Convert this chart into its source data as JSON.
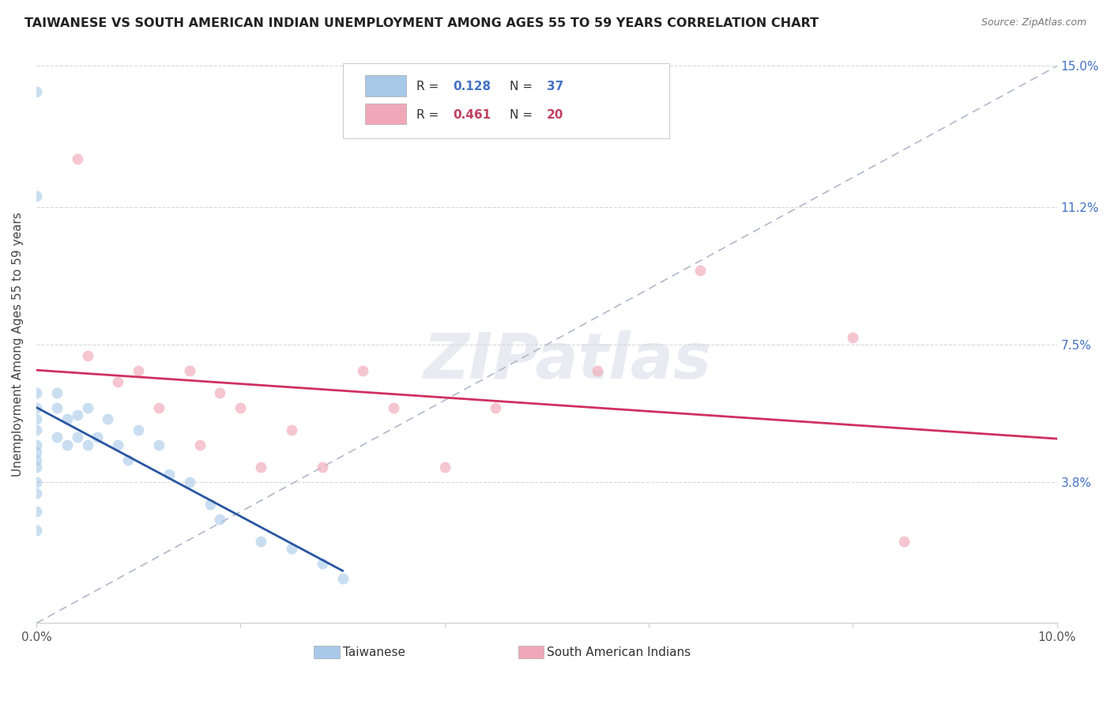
{
  "title": "TAIWANESE VS SOUTH AMERICAN INDIAN UNEMPLOYMENT AMONG AGES 55 TO 59 YEARS CORRELATION CHART",
  "source": "Source: ZipAtlas.com",
  "ylabel": "Unemployment Among Ages 55 to 59 years",
  "xlim": [
    0.0,
    0.1
  ],
  "ylim": [
    0.0,
    0.15
  ],
  "xtick_vals": [
    0.0,
    0.02,
    0.04,
    0.06,
    0.08,
    0.1
  ],
  "xticklabels": [
    "0.0%",
    "",
    "",
    "",
    "",
    "10.0%"
  ],
  "ytick_vals": [
    0.0,
    0.038,
    0.075,
    0.112,
    0.15
  ],
  "ytick_labels_right": [
    "",
    "3.8%",
    "7.5%",
    "11.2%",
    "15.0%"
  ],
  "grid_color": "#d8d8d8",
  "watermark": "ZIPatlas",
  "taiwanese_x": [
    0.0,
    0.0,
    0.0,
    0.0,
    0.0,
    0.0,
    0.0,
    0.0,
    0.0,
    0.0,
    0.0,
    0.0,
    0.0,
    0.0,
    0.002,
    0.002,
    0.002,
    0.003,
    0.003,
    0.004,
    0.004,
    0.005,
    0.005,
    0.006,
    0.007,
    0.008,
    0.009,
    0.01,
    0.012,
    0.013,
    0.015,
    0.017,
    0.018,
    0.022,
    0.025,
    0.028,
    0.03
  ],
  "taiwanese_y": [
    0.143,
    0.115,
    0.062,
    0.058,
    0.055,
    0.052,
    0.048,
    0.046,
    0.044,
    0.042,
    0.038,
    0.035,
    0.03,
    0.025,
    0.062,
    0.058,
    0.05,
    0.055,
    0.048,
    0.056,
    0.05,
    0.058,
    0.048,
    0.05,
    0.055,
    0.048,
    0.044,
    0.052,
    0.048,
    0.04,
    0.038,
    0.032,
    0.028,
    0.022,
    0.02,
    0.016,
    0.012
  ],
  "south_american_x": [
    0.004,
    0.005,
    0.008,
    0.01,
    0.012,
    0.015,
    0.016,
    0.018,
    0.02,
    0.022,
    0.025,
    0.028,
    0.032,
    0.035,
    0.04,
    0.045,
    0.055,
    0.065,
    0.08,
    0.085
  ],
  "south_american_y": [
    0.125,
    0.072,
    0.065,
    0.068,
    0.058,
    0.068,
    0.048,
    0.062,
    0.058,
    0.042,
    0.052,
    0.042,
    0.068,
    0.058,
    0.042,
    0.058,
    0.068,
    0.095,
    0.077,
    0.022
  ],
  "taiwanese_R": 0.128,
  "taiwanese_N": 37,
  "south_american_R": 0.461,
  "south_american_N": 20,
  "dot_size": 100,
  "taiwanese_color": "#a8c8e8",
  "south_american_color": "#f0a8b8",
  "trendline_blue_color": "#2855a0",
  "trendline_pink_color": "#d03060",
  "diagonal_color": "#b0b8cc",
  "background_color": "#ffffff",
  "r_blue": "#4472C4",
  "r_pink": "#c04060"
}
